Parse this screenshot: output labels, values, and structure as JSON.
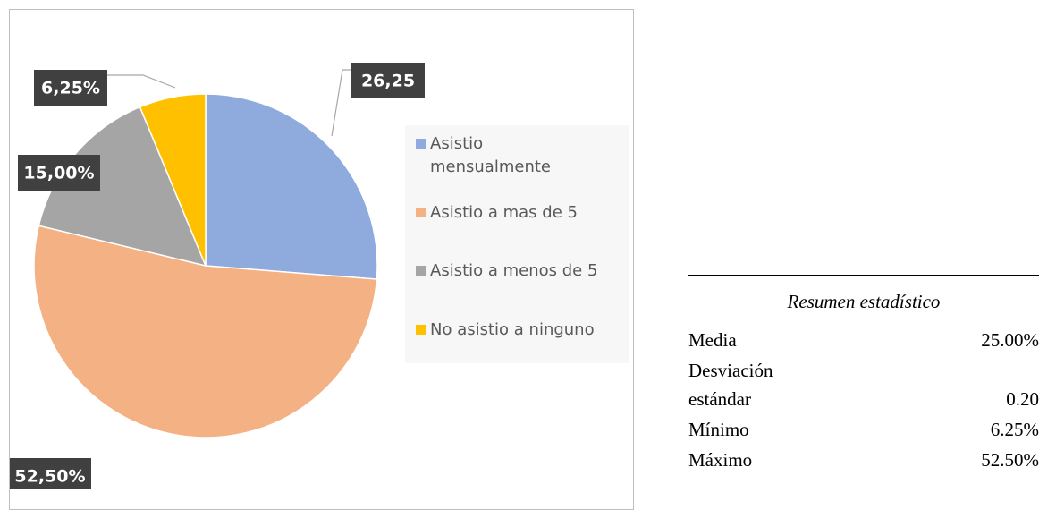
{
  "chart_data": {
    "type": "pie",
    "categories": [
      "Asistio mensualmente",
      "Asistio a mas de 5",
      "Asistio a menos de 5",
      "No asistio a ninguno"
    ],
    "values": [
      26.25,
      52.5,
      15,
      6.25
    ],
    "value_labels": [
      "26,25",
      "52,50%",
      "15,00%",
      "6,25%"
    ],
    "colors": [
      "#8faadc",
      "#f4b183",
      "#a5a5a5",
      "#ffc000"
    ]
  },
  "table": {
    "title": "Resumen estadístico",
    "rows": [
      [
        "Media",
        "25.00%"
      ],
      [
        "Desviación estándar",
        "0.20"
      ],
      [
        "Mínimo",
        "6.25%"
      ],
      [
        "Máximo",
        "52.50%"
      ]
    ]
  }
}
